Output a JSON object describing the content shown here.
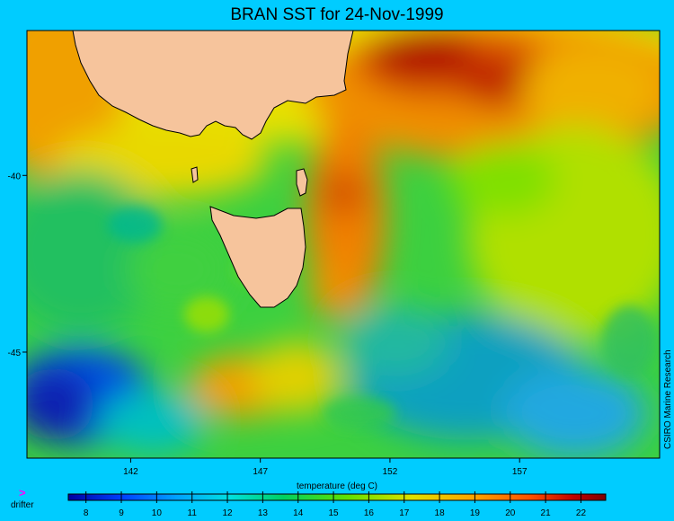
{
  "title": "BRAN SST for 24-Nov-1999",
  "credit": "CSIRO Marine Research",
  "map": {
    "lon_range": [
      138.0,
      162.4
    ],
    "lat_range": [
      -48.0,
      -35.9
    ],
    "lon_ticks": [
      142,
      147,
      152,
      157
    ],
    "lat_ticks": [
      -40,
      -45
    ],
    "land_color": "#f6c49c"
  },
  "colorbar": {
    "label": "temperature (deg C)",
    "min": 7.5,
    "max": 22.7,
    "ticks": [
      8,
      9,
      10,
      11,
      12,
      13,
      14,
      15,
      16,
      17,
      18,
      19,
      20,
      21,
      22
    ],
    "stops": [
      "#0000a0",
      "#0040ff",
      "#00a0ff",
      "#00e0e0",
      "#00d060",
      "#60e000",
      "#e0e000",
      "#ffa000",
      "#ff5000",
      "#c00000",
      "#800000"
    ]
  },
  "legend": {
    "marker": ">",
    "label": "drifter",
    "marker_color": "#ff00ff"
  }
}
